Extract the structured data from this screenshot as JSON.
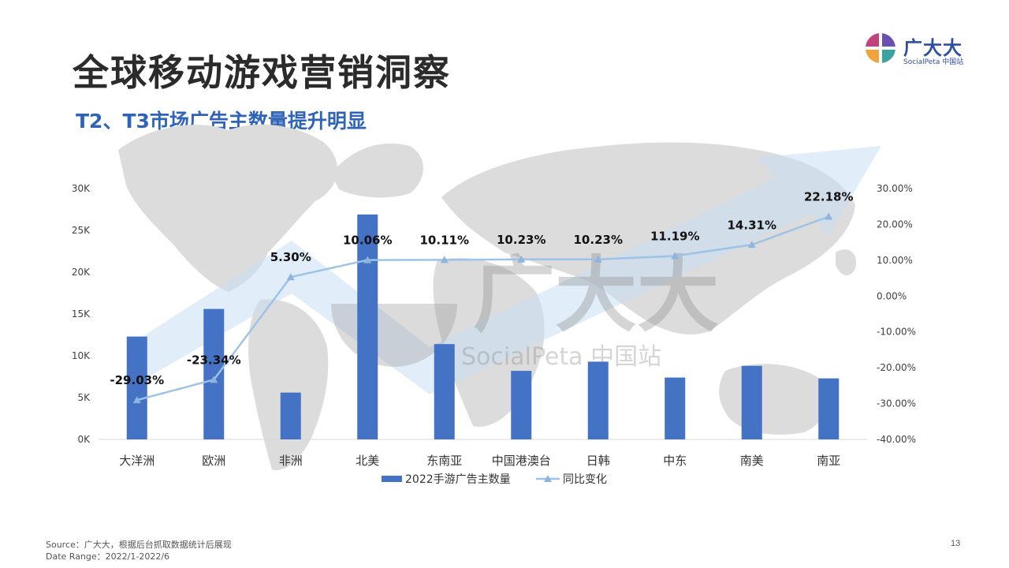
{
  "page": {
    "title": "全球移动游戏营销洞察",
    "subtitle": "T2、T3市场广告主数量提升明显",
    "page_number": "13"
  },
  "logo": {
    "text": "广大大",
    "sub": "SocialPeta 中国站",
    "watermark_text": "广大大",
    "watermark_sub": "SocialPeta 中国站",
    "colors": [
      "#c2427e",
      "#f2a33a",
      "#3aa3a0",
      "#6b4fb5"
    ]
  },
  "footer": {
    "source": "Source：广大大，根据后台抓取数据统计后展现",
    "date_range": "Date Range：2022/1-2022/6"
  },
  "chart_data": {
    "type": "bar",
    "title": "",
    "categories": [
      "大洋洲",
      "欧洲",
      "非洲",
      "北美",
      "东南亚",
      "中国港澳台",
      "日韩",
      "中东",
      "南美",
      "南亚"
    ],
    "series": [
      {
        "name": "2022手游广告主数量",
        "type": "bar",
        "axis": "left",
        "color": "#4472c4",
        "values": [
          12300,
          15600,
          5600,
          26900,
          11400,
          8200,
          9300,
          7400,
          8800,
          7300
        ]
      },
      {
        "name": "同比变化",
        "type": "line",
        "axis": "right",
        "color": "#9dc3e6",
        "values": [
          -29.03,
          -23.34,
          5.3,
          10.06,
          10.11,
          10.23,
          10.23,
          11.19,
          14.31,
          22.18
        ],
        "data_labels": [
          "-29.03%",
          "-23.34%",
          "5.30%",
          "10.06%",
          "10.11%",
          "10.23%",
          "10.23%",
          "11.19%",
          "14.31%",
          "22.18%"
        ]
      }
    ],
    "y_left": {
      "ylim": [
        0,
        30000
      ],
      "ticks": [
        "0K",
        "5K",
        "10K",
        "15K",
        "20K",
        "25K",
        "30K"
      ]
    },
    "y_right": {
      "ylim": [
        -40,
        30
      ],
      "ticks": [
        "-40.00%",
        "-30.00%",
        "-20.00%",
        "-10.00%",
        "0.00%",
        "10.00%",
        "20.00%",
        "30.00%"
      ]
    },
    "legend_position": "bottom",
    "grid": false
  }
}
